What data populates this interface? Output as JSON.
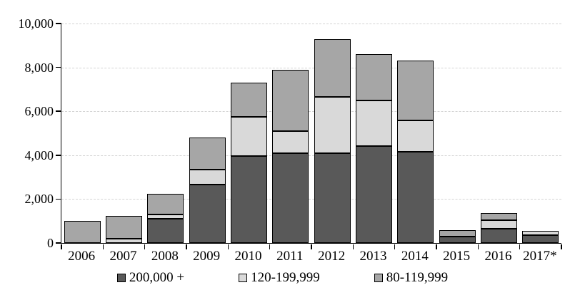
{
  "chart_data": {
    "type": "bar",
    "stacked": true,
    "title": "",
    "xlabel": "",
    "ylabel": "",
    "categories": [
      "2006",
      "2007",
      "2008",
      "2009",
      "2010",
      "2011",
      "2012",
      "2013",
      "2014",
      "2015",
      "2016",
      "2017*"
    ],
    "series": [
      {
        "name": "200,000 +",
        "color": "#595959",
        "values": [
          0,
          0,
          1100,
          2650,
          3950,
          4100,
          4100,
          4400,
          4150,
          300,
          650,
          350
        ]
      },
      {
        "name": "120-199,999",
        "color": "#d9d9d9",
        "values": [
          0,
          200,
          200,
          700,
          1800,
          1000,
          2550,
          2100,
          1450,
          0,
          400,
          200
        ]
      },
      {
        "name": "80-119,999",
        "color": "#a6a6a6",
        "values": [
          1000,
          1050,
          950,
          1450,
          1550,
          2800,
          2650,
          2100,
          2700,
          300,
          300,
          0
        ]
      }
    ],
    "totals": [
      1000,
      1250,
      2250,
      4800,
      7300,
      7900,
      9300,
      8600,
      8300,
      600,
      1350,
      550
    ],
    "ylim": [
      0,
      10000
    ],
    "yticks": [
      {
        "value": 0,
        "label": "0"
      },
      {
        "value": 2000,
        "label": "2,000"
      },
      {
        "value": 4000,
        "label": "4,000"
      },
      {
        "value": 6000,
        "label": "6,000"
      },
      {
        "value": 8000,
        "label": "8,000"
      },
      {
        "value": 10000,
        "label": "10,000"
      }
    ],
    "grid": "horizontal-dashed",
    "legend_position": "bottom"
  },
  "colors": {
    "background": "#ffffff",
    "axis": "#000000",
    "bar_border": "#000000",
    "gridline": "#d3d3d3"
  }
}
